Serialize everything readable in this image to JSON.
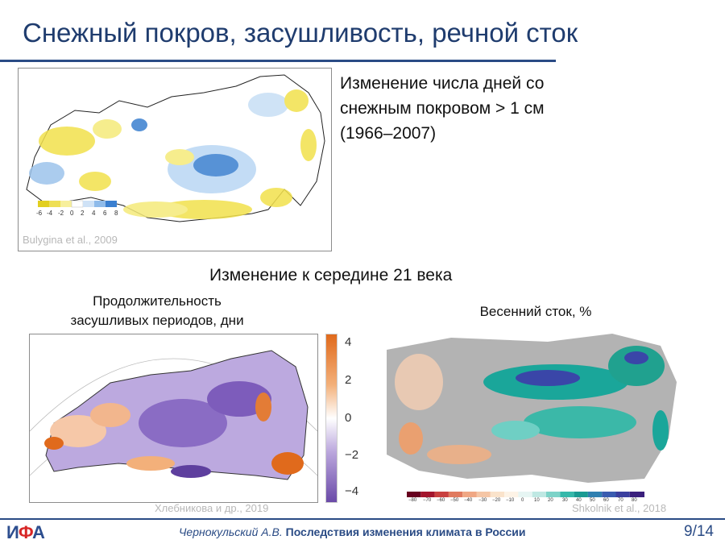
{
  "slide": {
    "title": "Снежный покров, засушливость, речной сток",
    "snow_text": "Изменение числа дней со снежным покровом > 1 см (1966–2007)",
    "snow_legend_ticks": [
      "-6",
      "-4",
      "-2",
      "0",
      "2",
      "4",
      "6",
      "8"
    ],
    "snow_source": "Bulygina et al., 2009",
    "mid_title": "Изменение к середине 21 века",
    "drought_caption_line1": "Продолжительность",
    "drought_caption_line2": "засушливых периодов, дни",
    "drought_colorbar_ticks": [
      "4",
      "2",
      "0",
      "−2",
      "−4"
    ],
    "drought_source": "Хлебникова и др., 2019",
    "runoff_caption": "Весенний сток, %",
    "runoff_colorbar_ticks": [
      "−80",
      "−70",
      "−60",
      "−50",
      "−40",
      "−30",
      "−20",
      "−10",
      "0",
      "10",
      "20",
      "30",
      "40",
      "50",
      "60",
      "70",
      "80"
    ],
    "runoff_source": "Shkolnik et al., 2018"
  },
  "footer": {
    "logo_part1": "И",
    "logo_part2": "Ф",
    "logo_part3": "А",
    "author": "Чернокульский А.В.",
    "subtitle": "Последствия изменения климата в России",
    "page": "9/14"
  },
  "colors": {
    "title": "#1f3c6e",
    "rule": "#2a4b85",
    "snow_decrease": "#f2e14c",
    "snow_increase": "#3a7fd0",
    "drought_longer": "#e06a1c",
    "drought_shorter": "#6a4aa8",
    "runoff_increase": "#1aa69a",
    "runoff_decrease": "#e8b08a",
    "no_change": "#b3b3b3"
  }
}
